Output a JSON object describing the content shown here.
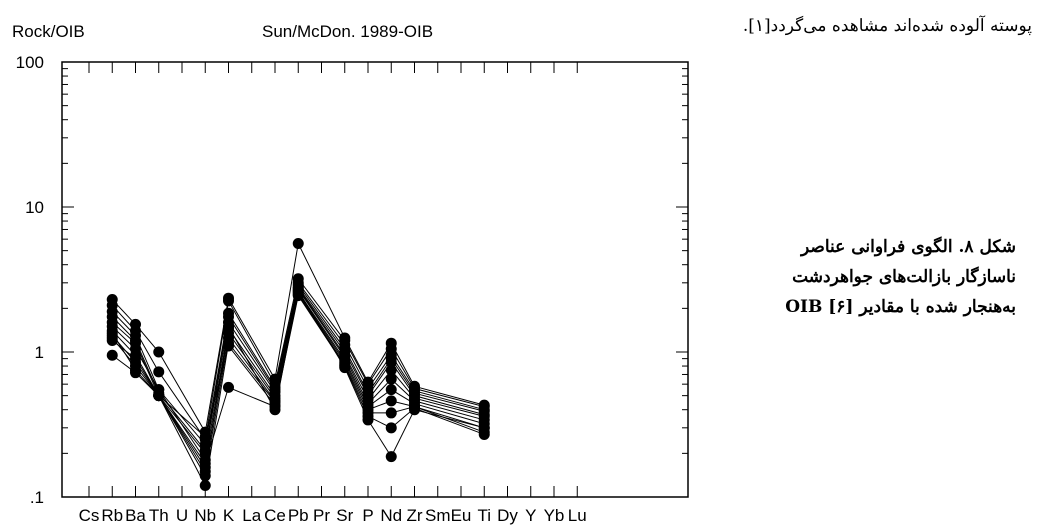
{
  "top_text": "پوسته آلوده شده‌اند مشاهده می‌گردد[۱].",
  "caption": {
    "lines": [
      "شکل ۸. الگوی فراوانی عناصر",
      "ناسازگار بازالت‌های جواهردشت",
      "به‌هنجار شده با مقادیر OIB [۶]"
    ]
  },
  "chart_data": {
    "type": "line",
    "title": "Sun/McDon. 1989-OIB",
    "ylabel": "Rock/OIB",
    "xlabel": "",
    "yscale": "log",
    "ylim": [
      0.1,
      100
    ],
    "yticks": [
      "100",
      "10",
      "1",
      ".1"
    ],
    "grid": false,
    "categories": [
      "Cs",
      "Rb",
      "Ba",
      "Th",
      "U",
      "Nb",
      "K",
      "La",
      "Ce",
      "Pb",
      "Pr",
      "Sr",
      "P",
      "Nd",
      "Zr",
      "Sm",
      "Eu",
      "Ti",
      "Dy",
      "Y",
      "Yb",
      "Lu"
    ],
    "series": [
      {
        "values": [
          null,
          2.3,
          1.55,
          1.0,
          null,
          0.28,
          2.35,
          null,
          0.65,
          5.6,
          null,
          1.25,
          0.62,
          1.15,
          0.58,
          null,
          null,
          0.43,
          null,
          null,
          null,
          null
        ]
      },
      {
        "values": [
          null,
          2.1,
          1.4,
          0.73,
          null,
          0.25,
          2.25,
          null,
          0.6,
          3.2,
          null,
          1.2,
          0.6,
          1.05,
          0.56,
          null,
          null,
          0.42,
          null,
          null,
          null,
          null
        ]
      },
      {
        "values": [
          null,
          1.9,
          1.3,
          0.55,
          null,
          0.23,
          1.85,
          null,
          0.57,
          3.0,
          null,
          1.12,
          0.56,
          0.95,
          0.54,
          null,
          null,
          0.4,
          null,
          null,
          null,
          null
        ]
      },
      {
        "values": [
          null,
          1.75,
          1.2,
          0.52,
          null,
          0.21,
          1.75,
          null,
          0.55,
          2.9,
          null,
          1.05,
          0.52,
          0.9,
          0.52,
          null,
          null,
          0.39,
          null,
          null,
          null,
          null
        ]
      },
      {
        "values": [
          null,
          1.6,
          1.15,
          0.5,
          null,
          0.2,
          1.6,
          null,
          0.53,
          2.8,
          null,
          1.0,
          0.5,
          0.85,
          0.5,
          null,
          null,
          0.37,
          null,
          null,
          null,
          null
        ]
      },
      {
        "values": [
          null,
          1.5,
          1.05,
          0.55,
          null,
          0.18,
          1.45,
          null,
          0.5,
          2.75,
          null,
          0.95,
          0.47,
          0.75,
          0.48,
          null,
          null,
          0.36,
          null,
          null,
          null,
          null
        ]
      },
      {
        "values": [
          null,
          1.4,
          0.95,
          0.5,
          null,
          0.16,
          1.35,
          null,
          0.48,
          2.7,
          null,
          0.92,
          0.44,
          0.65,
          0.46,
          null,
          null,
          0.34,
          null,
          null,
          null,
          null
        ]
      },
      {
        "values": [
          null,
          1.3,
          0.85,
          0.5,
          null,
          0.14,
          1.25,
          null,
          0.46,
          2.6,
          null,
          0.88,
          0.42,
          0.55,
          0.44,
          null,
          null,
          0.32,
          null,
          null,
          null,
          null
        ]
      },
      {
        "values": [
          null,
          1.25,
          0.8,
          0.5,
          null,
          0.12,
          1.15,
          null,
          0.45,
          2.55,
          null,
          0.85,
          0.4,
          0.46,
          0.42,
          null,
          null,
          0.3,
          null,
          null,
          null,
          null
        ]
      },
      {
        "values": [
          null,
          1.35,
          0.75,
          0.5,
          null,
          0.26,
          1.1,
          null,
          0.43,
          2.5,
          null,
          0.82,
          0.38,
          0.38,
          0.42,
          null,
          null,
          0.28,
          null,
          null,
          null,
          null
        ]
      },
      {
        "values": [
          null,
          0.95,
          0.72,
          0.5,
          null,
          0.17,
          0.57,
          null,
          0.42,
          2.45,
          null,
          0.8,
          0.36,
          0.3,
          0.41,
          null,
          null,
          0.27,
          null,
          null,
          null,
          null
        ]
      },
      {
        "values": [
          null,
          1.2,
          0.9,
          0.5,
          null,
          0.15,
          1.5,
          null,
          0.4,
          2.65,
          null,
          0.78,
          0.34,
          0.19,
          0.4,
          null,
          null,
          0.3,
          null,
          null,
          null,
          null
        ]
      }
    ]
  }
}
